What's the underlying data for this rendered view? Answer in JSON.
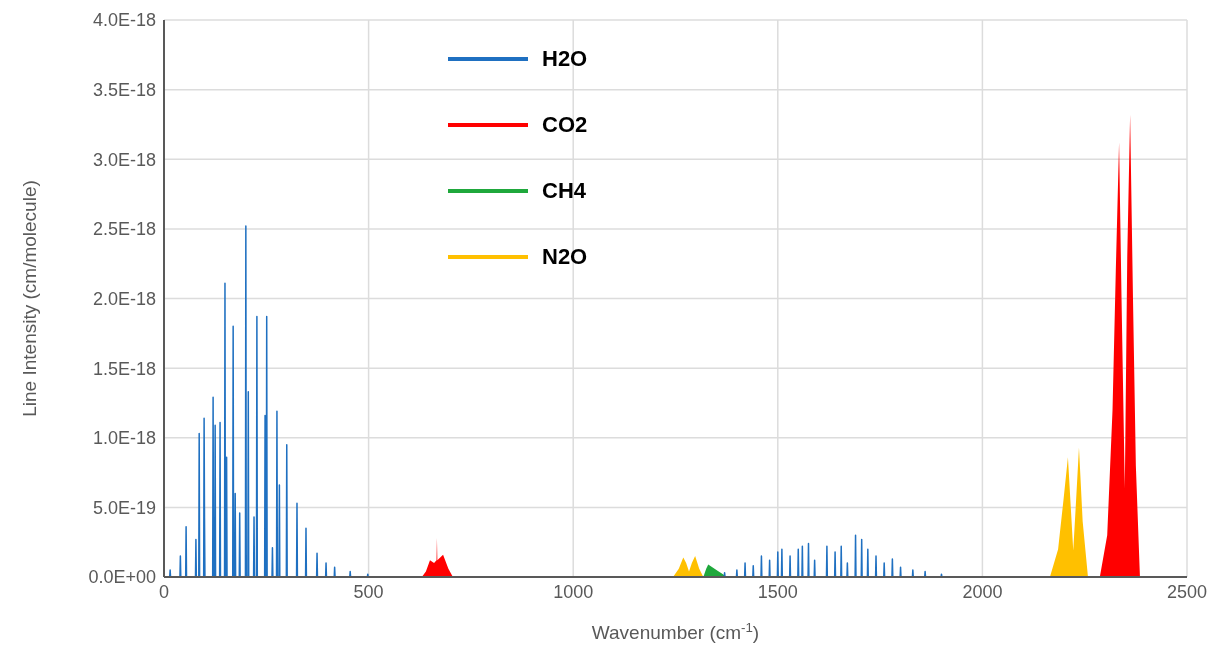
{
  "chart_data": {
    "type": "line",
    "xlabel": "Wavenumber (cm$^{-1}$)",
    "ylabel": "Line Intensity (cm/molecule)",
    "xlim": [
      0,
      2500
    ],
    "xticks": [
      0,
      500,
      1000,
      1500,
      2000,
      2500
    ],
    "ylim": [
      0,
      4e-18
    ],
    "yticks": [
      {
        "value": 0,
        "label": "0.0E+00"
      },
      {
        "value": 5e-19,
        "label": "5.0E-19"
      },
      {
        "value": 1e-18,
        "label": "1.0E-18"
      },
      {
        "value": 1.5e-18,
        "label": "1.5E-18"
      },
      {
        "value": 2e-18,
        "label": "2.0E-18"
      },
      {
        "value": 2.5e-18,
        "label": "2.5E-18"
      },
      {
        "value": 3e-18,
        "label": "3.0E-18"
      },
      {
        "value": 3.5e-18,
        "label": "3.5E-18"
      },
      {
        "value": 4e-18,
        "label": "4.0E-18"
      }
    ],
    "grid": true,
    "legend": "top",
    "marker": "none",
    "series": [
      {
        "name": "H2O",
        "color": "#1f70c1",
        "x": [
          0,
          14,
          15,
          16,
          39,
          40,
          41,
          53,
          54,
          55,
          77,
          78,
          79,
          85,
          86,
          87,
          97,
          98,
          99,
          100,
          119,
          120,
          121,
          124,
          125,
          126,
          136,
          137,
          138,
          148,
          149,
          150,
          152,
          153,
          154,
          168,
          169,
          170,
          173,
          174,
          175,
          184,
          185,
          186,
          199,
          200,
          201,
          205,
          206,
          207,
          219,
          220,
          221,
          226,
          227,
          228,
          246,
          247,
          248,
          250,
          251,
          252,
          264,
          265,
          266,
          275,
          276,
          277,
          281,
          282,
          283,
          299,
          300,
          301,
          324,
          325,
          326,
          346,
          347,
          348,
          373,
          374,
          375,
          395,
          396,
          397,
          416,
          417,
          418,
          454,
          455,
          456,
          497,
          498,
          499,
          1369,
          1370,
          1371,
          1399,
          1400,
          1401,
          1419,
          1420,
          1421,
          1439,
          1440,
          1441,
          1459,
          1460,
          1461,
          1479,
          1480,
          1481,
          1499,
          1500,
          1501,
          1509,
          1510,
          1511,
          1529,
          1530,
          1531,
          1549,
          1550,
          1551,
          1559,
          1560,
          1561,
          1574,
          1575,
          1576,
          1589,
          1590,
          1591,
          1619,
          1620,
          1621,
          1639,
          1640,
          1641,
          1654,
          1655,
          1656,
          1669,
          1670,
          1671,
          1689,
          1690,
          1691,
          1704,
          1705,
          1706,
          1719,
          1720,
          1721,
          1739,
          1740,
          1741,
          1759,
          1760,
          1761,
          1779,
          1780,
          1781,
          1799,
          1800,
          1801,
          1829,
          1830,
          1831,
          1859,
          1860,
          1861,
          1899,
          1900,
          1901,
          2500
        ],
        "values": [
          0,
          0,
          5e-20,
          0,
          0,
          1.5e-19,
          0,
          0,
          3.6e-19,
          0,
          0,
          2.7e-19,
          0,
          0,
          1.03e-18,
          0,
          0,
          1.14e-18,
          4.2e-19,
          0,
          0,
          1.29e-18,
          0,
          0,
          1.09e-18,
          0,
          0,
          1.11e-18,
          0,
          0,
          2.11e-18,
          0,
          0,
          8.6e-19,
          0,
          0,
          1.8e-18,
          0,
          0,
          6e-19,
          0,
          0,
          4.6e-19,
          0,
          0,
          2.52e-18,
          0,
          0,
          1.33e-18,
          0,
          0,
          4.3e-19,
          0,
          0,
          1.87e-18,
          0,
          0,
          1.16e-18,
          0,
          0,
          1.87e-18,
          0,
          0,
          2.1e-19,
          0,
          0,
          1.19e-18,
          0,
          0,
          6.6e-19,
          0,
          0,
          9.5e-19,
          0,
          0,
          5.3e-19,
          0,
          0,
          3.5e-19,
          0,
          0,
          1.7e-19,
          0,
          0,
          1e-19,
          0,
          0,
          7e-20,
          0,
          0,
          4e-20,
          0,
          0,
          2e-20,
          0,
          0,
          3e-20,
          0,
          0,
          5e-20,
          0,
          0,
          1e-19,
          0,
          0,
          8e-20,
          0,
          0,
          1.5e-19,
          0,
          0,
          1.2e-19,
          0,
          0,
          1.8e-19,
          0,
          0,
          2e-19,
          0,
          0,
          1.5e-19,
          0,
          0,
          2e-19,
          0,
          0,
          2.2e-19,
          0,
          0,
          2.4e-19,
          0,
          0,
          1.2e-19,
          0,
          0,
          2.2e-19,
          0,
          0,
          1.8e-19,
          0,
          0,
          2.2e-19,
          0,
          0,
          1e-19,
          0,
          0,
          3e-19,
          0,
          0,
          2.7e-19,
          0,
          0,
          2e-19,
          0,
          0,
          1.5e-19,
          0,
          0,
          1e-19,
          0,
          0,
          1.3e-19,
          0,
          0,
          7e-20,
          0,
          0,
          5e-20,
          0,
          0,
          4e-20,
          0,
          0,
          2e-20,
          0,
          0
        ]
      },
      {
        "name": "CO2",
        "type": "area",
        "color": "#ff0000",
        "x": [
          0,
          630,
          640,
          650,
          660,
          666,
          667,
          668,
          675,
          682,
          695,
          706,
          2287,
          2305,
          2318,
          2326,
          2334,
          2340,
          2348,
          2354,
          2361,
          2368,
          2375,
          2385,
          2500
        ],
        "values": [
          0,
          0,
          4e-20,
          1.2e-19,
          1e-19,
          1.2e-19,
          2.8e-19,
          1.2e-19,
          1.4e-19,
          1.6e-19,
          6e-20,
          0,
          0,
          3e-19,
          1.2e-18,
          2.2e-18,
          3.12e-18,
          2e-18,
          6.4e-19,
          2.3e-18,
          3.32e-18,
          2e-18,
          8e-19,
          0,
          0
        ]
      },
      {
        "name": "CH4",
        "type": "area",
        "color": "#1fa83c",
        "x": [
          0,
          1318,
          1325,
          1330,
          1340,
          1350,
          1366,
          1375,
          2500
        ],
        "values": [
          0,
          0,
          6e-20,
          9e-20,
          7e-20,
          5e-20,
          2e-20,
          0,
          0
        ]
      },
      {
        "name": "N2O",
        "type": "area",
        "color": "#ffc000",
        "x": [
          0,
          1244,
          1258,
          1269,
          1276,
          1283,
          1290,
          1298,
          1308,
          1318,
          2165,
          2185,
          2198,
          2209,
          2216,
          2222,
          2228,
          2236,
          2245,
          2258,
          2500
        ],
        "values": [
          0,
          0,
          6e-20,
          1.4e-19,
          1e-19,
          4e-20,
          1e-19,
          1.5e-19,
          6e-20,
          0,
          0,
          2e-19,
          5.5e-19,
          8.6e-19,
          5e-19,
          1.9e-19,
          5e-19,
          9.3e-19,
          4e-19,
          0,
          0
        ]
      }
    ]
  }
}
